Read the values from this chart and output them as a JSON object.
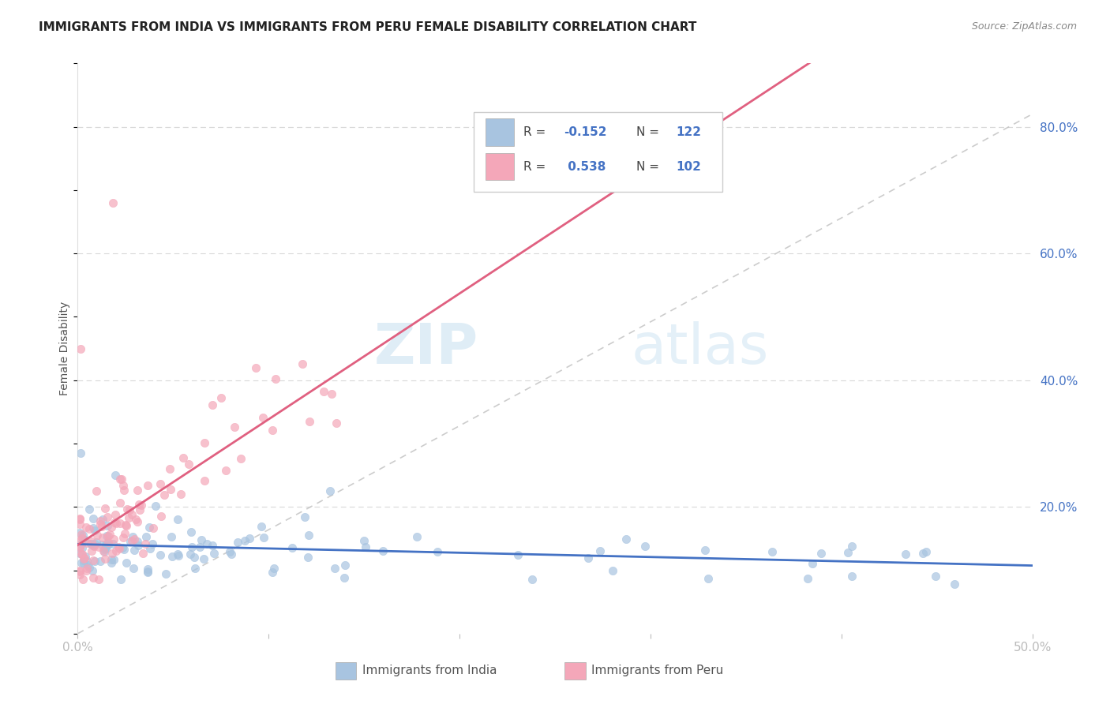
{
  "title": "IMMIGRANTS FROM INDIA VS IMMIGRANTS FROM PERU FEMALE DISABILITY CORRELATION CHART",
  "source": "Source: ZipAtlas.com",
  "ylabel": "Female Disability",
  "xlim": [
    0.0,
    0.5
  ],
  "ylim": [
    0.0,
    0.9
  ],
  "india_R": -0.152,
  "india_N": 122,
  "peru_R": 0.538,
  "peru_N": 102,
  "india_color": "#a8c4e0",
  "peru_color": "#f4a7b9",
  "india_line_color": "#4472c4",
  "peru_line_color": "#e06080",
  "identity_line_color": "#c0c0c0",
  "background_color": "#ffffff",
  "grid_color": "#d8d8d8",
  "watermark_zip": "ZIP",
  "watermark_atlas": "atlas",
  "legend_india_label": "Immigrants from India",
  "legend_peru_label": "Immigrants from Peru",
  "legend_text_color": "#4472c4",
  "title_color": "#222222",
  "source_color": "#888888",
  "axis_label_color": "#555555",
  "tick_color": "#4472c4"
}
